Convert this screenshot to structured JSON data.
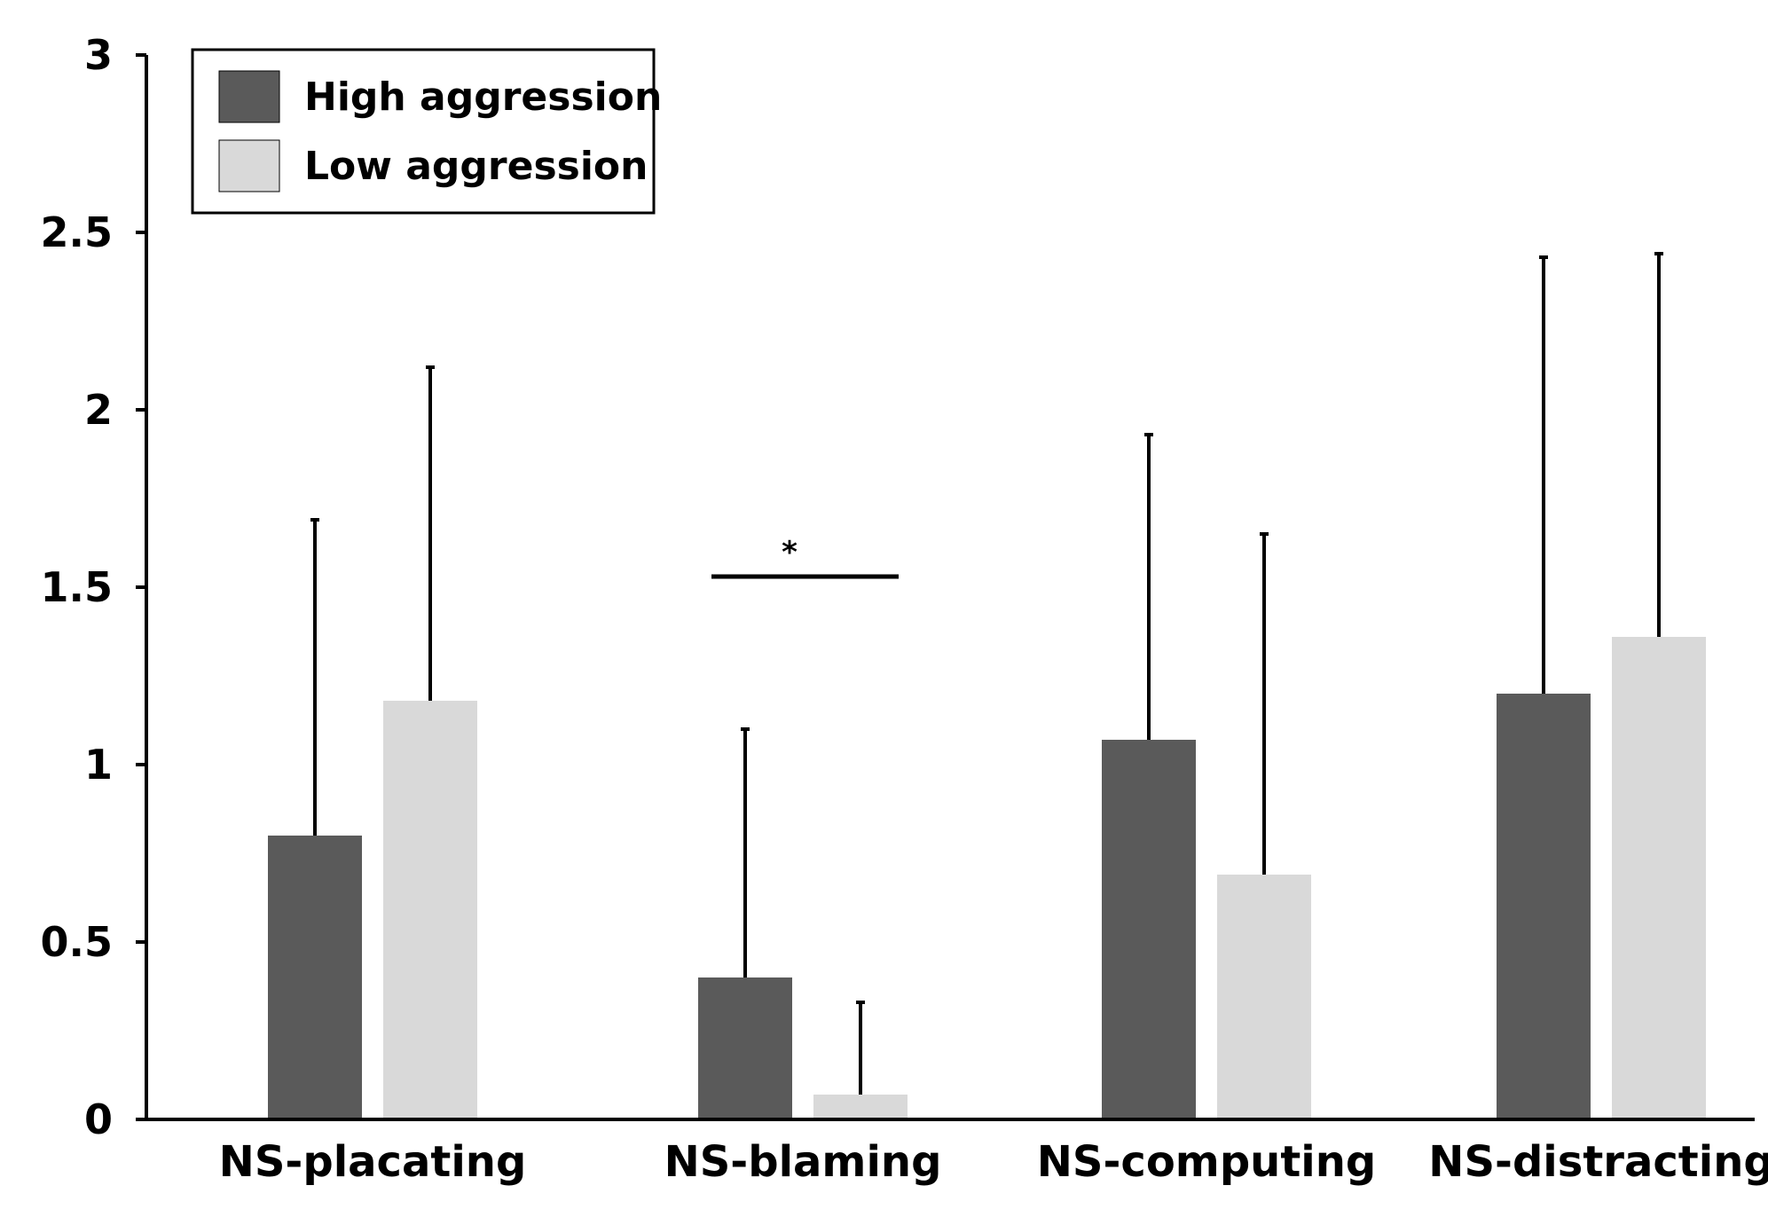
{
  "chart_data": {
    "type": "bar",
    "title": "",
    "xlabel": "",
    "ylabel": "",
    "ylim": [
      0,
      3
    ],
    "yticks": [
      0,
      0.5,
      1,
      1.5,
      2,
      2.5,
      3
    ],
    "ytick_labels": [
      "0",
      "0.5",
      "1",
      "1.5",
      "2",
      "2.5",
      "3"
    ],
    "categories": [
      "NS-placating",
      "NS-blaming",
      "NS-computing",
      "NS-distracting"
    ],
    "series": [
      {
        "name": "High aggression",
        "color": "#5a5a5a",
        "values": [
          0.8,
          0.4,
          1.07,
          1.2
        ],
        "error_upper": [
          1.69,
          1.1,
          1.93,
          2.43
        ]
      },
      {
        "name": "Low aggression",
        "color": "#d9d9d9",
        "values": [
          1.18,
          0.07,
          0.69,
          1.36
        ],
        "error_upper": [
          2.12,
          0.33,
          1.65,
          2.44
        ]
      }
    ],
    "legend_position": "top-left",
    "grid": false,
    "annotations": [
      {
        "text": "*",
        "category": "NS-blaming",
        "y": 1.53,
        "kind": "significance-bar"
      }
    ]
  }
}
